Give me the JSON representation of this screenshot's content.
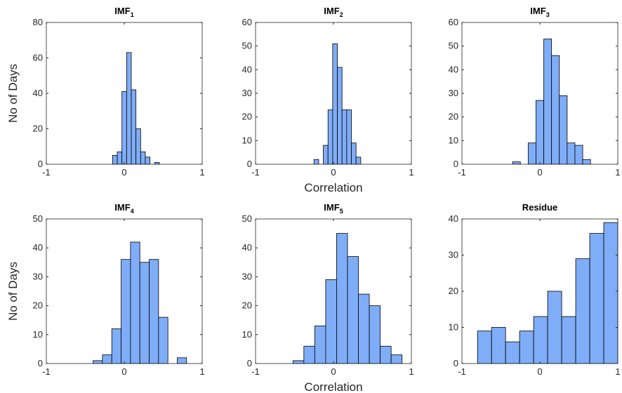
{
  "chart_data": [
    {
      "type": "histogram",
      "title": "IMF",
      "title_sub": "1",
      "ylabel": "No of Days",
      "color": "#7fadf7",
      "bins": [
        -0.15,
        -0.09,
        -0.03,
        0.03,
        0.09,
        0.15,
        0.21,
        0.27,
        0.33,
        0.39,
        0.45
      ],
      "counts": [
        5,
        7,
        41,
        63,
        42,
        20,
        7,
        4,
        0,
        1
      ],
      "xlim": [
        -1,
        1
      ],
      "xticks": [
        -1,
        0,
        1
      ],
      "ylim": [
        0,
        80
      ],
      "yticks": [
        0,
        20,
        40,
        60,
        80
      ]
    },
    {
      "type": "histogram",
      "title": "IMF",
      "title_sub": "2",
      "xlabel": "Correlation",
      "color": "#7fadf7",
      "bins": [
        -0.25,
        -0.19,
        -0.13,
        -0.07,
        -0.01,
        0.05,
        0.11,
        0.17,
        0.23,
        0.29,
        0.35
      ],
      "counts": [
        2,
        0,
        8,
        23,
        51,
        41,
        23,
        23,
        9,
        3
      ],
      "xlim": [
        -1,
        1
      ],
      "xticks": [
        -1,
        0,
        1
      ],
      "ylim": [
        0,
        60
      ],
      "yticks": [
        0,
        10,
        20,
        30,
        40,
        50,
        60
      ]
    },
    {
      "type": "histogram",
      "title": "IMF",
      "title_sub": "3",
      "color": "#7fadf7",
      "bins": [
        -0.35,
        -0.25,
        -0.15,
        -0.05,
        0.05,
        0.15,
        0.25,
        0.35,
        0.45,
        0.55,
        0.65
      ],
      "counts": [
        1,
        0,
        9,
        27,
        53,
        46,
        29,
        9,
        8,
        2
      ],
      "xlim": [
        -1,
        1
      ],
      "xticks": [
        -1,
        0,
        1
      ],
      "ylim": [
        0,
        60
      ],
      "yticks": [
        0,
        10,
        20,
        30,
        40,
        50,
        60
      ]
    },
    {
      "type": "histogram",
      "title": "IMF",
      "title_sub": "4",
      "ylabel": "No of Days",
      "color": "#7fadf7",
      "bins": [
        -0.4,
        -0.28,
        -0.16,
        -0.04,
        0.08,
        0.2,
        0.32,
        0.44,
        0.56,
        0.68,
        0.8
      ],
      "counts": [
        1,
        3,
        12,
        36,
        42,
        35,
        36,
        16,
        0,
        2
      ],
      "xlim": [
        -1,
        1
      ],
      "xticks": [
        -1,
        0,
        1
      ],
      "ylim": [
        0,
        50
      ],
      "yticks": [
        0,
        10,
        20,
        30,
        40,
        50
      ]
    },
    {
      "type": "histogram",
      "title": "IMF",
      "title_sub": "5",
      "xlabel": "Correlation",
      "color": "#7fadf7",
      "bins": [
        -0.52,
        -0.38,
        -0.24,
        -0.1,
        0.04,
        0.18,
        0.32,
        0.46,
        0.6,
        0.74,
        0.88
      ],
      "counts": [
        1,
        6,
        13,
        29,
        45,
        37,
        24,
        20,
        6,
        3
      ],
      "xlim": [
        -1,
        1
      ],
      "xticks": [
        -1,
        0,
        1
      ],
      "ylim": [
        0,
        50
      ],
      "yticks": [
        0,
        10,
        20,
        30,
        40,
        50
      ]
    },
    {
      "type": "histogram",
      "title": "Residue",
      "color": "#7fadf7",
      "bins": [
        -0.8,
        -0.62,
        -0.44,
        -0.26,
        -0.08,
        0.1,
        0.28,
        0.46,
        0.64,
        0.82,
        1.0
      ],
      "counts": [
        9,
        10,
        6,
        9,
        13,
        20,
        13,
        29,
        36,
        39
      ],
      "xlim": [
        -1,
        1
      ],
      "xticks": [
        -1,
        0,
        1
      ],
      "ylim": [
        0,
        40
      ],
      "yticks": [
        0,
        10,
        20,
        30,
        40
      ]
    }
  ]
}
